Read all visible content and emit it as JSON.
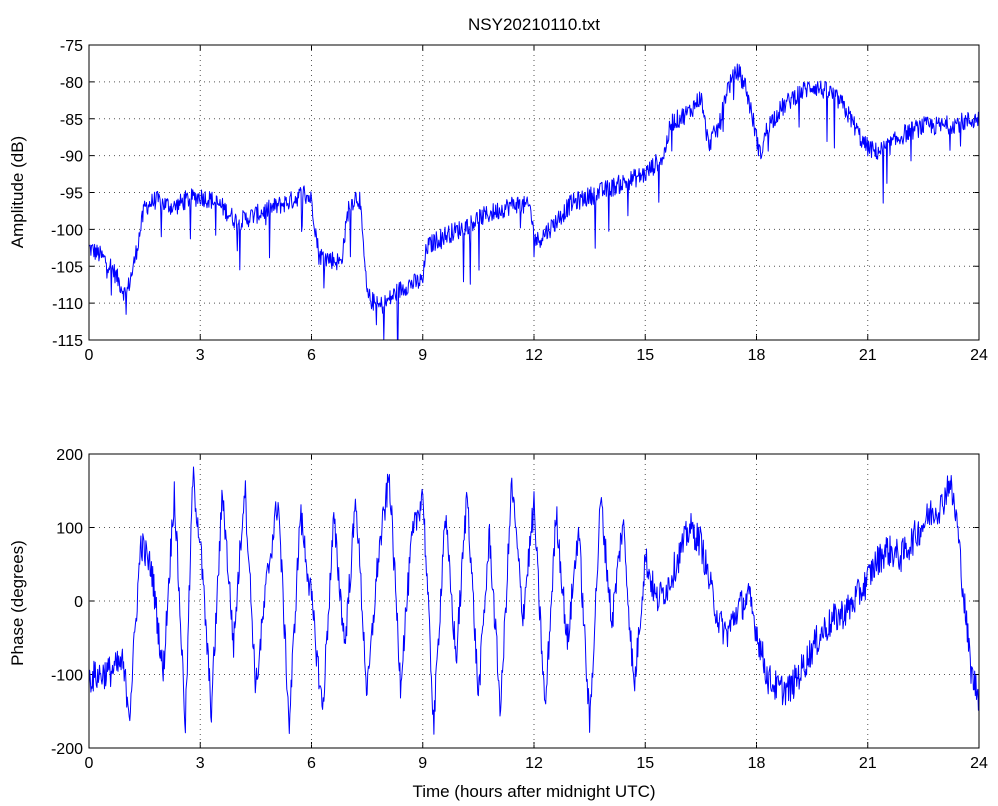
{
  "title": "NSY20210110.txt",
  "colors": {
    "series": "#0000ff",
    "axes": "#000000",
    "background": "#ffffff"
  },
  "chart_data": [
    {
      "type": "line",
      "title": "NSY20210110.txt",
      "xlabel": "",
      "ylabel": "Amplitude (dB)",
      "xlim": [
        0,
        24
      ],
      "ylim": [
        -115,
        -75
      ],
      "xticks": [
        0,
        3,
        6,
        9,
        12,
        15,
        18,
        21,
        24
      ],
      "yticks": [
        -75,
        -80,
        -85,
        -90,
        -95,
        -100,
        -105,
        -110,
        -115
      ],
      "grid": true,
      "legend": "none",
      "series": [
        {
          "x": [
            0,
            0.3,
            0.6,
            0.8,
            1.0,
            1.2,
            1.5,
            1.8,
            2.0,
            2.3,
            2.6,
            3.0,
            3.3,
            3.6,
            4.0,
            4.5,
            5.0,
            5.5,
            5.8,
            6.0,
            6.2,
            6.5,
            6.8,
            7.0,
            7.2,
            7.3,
            7.5,
            7.8,
            8.0,
            8.3,
            8.6,
            9.0,
            9.1,
            9.5,
            10.0,
            10.5,
            11.0,
            11.5,
            11.9,
            12.0,
            12.1,
            12.5,
            13.0,
            13.5,
            14.0,
            14.5,
            15.0,
            15.5,
            15.7,
            15.9,
            16.2,
            16.5,
            16.7,
            17.0,
            17.2,
            17.5,
            17.7,
            17.9,
            18.1,
            18.3,
            18.6,
            19.0,
            19.5,
            20.0,
            20.3,
            20.6,
            20.9,
            21.2,
            21.5,
            22.0,
            22.5,
            23.0,
            23.5,
            24.0
          ],
          "values": [
            -102.5,
            -103.5,
            -105,
            -107,
            -109,
            -105,
            -97,
            -96,
            -96.5,
            -97,
            -96,
            -95.5,
            -96,
            -97,
            -99,
            -98,
            -97,
            -96,
            -95,
            -96,
            -103.5,
            -104,
            -104.5,
            -97,
            -95.5,
            -96,
            -109,
            -110.5,
            -110,
            -108.5,
            -107.5,
            -107,
            -102.5,
            -101,
            -100,
            -98.5,
            -97.5,
            -96.5,
            -97,
            -101,
            -101.5,
            -99.5,
            -96.5,
            -95.5,
            -94.5,
            -93.5,
            -92.5,
            -90,
            -85.5,
            -85,
            -84,
            -82,
            -88.5,
            -86,
            -81,
            -78.5,
            -80.5,
            -85,
            -90,
            -86,
            -84,
            -82,
            -80.5,
            -81.5,
            -83,
            -85.5,
            -88.5,
            -89.5,
            -89,
            -87,
            -86,
            -86,
            -85.5,
            -85
          ]
        }
      ]
    },
    {
      "type": "line",
      "title": "",
      "xlabel": "Time (hours after midnight UTC)",
      "ylabel": "Phase (degrees)",
      "xlim": [
        0,
        24
      ],
      "ylim": [
        -200,
        200
      ],
      "xticks": [
        0,
        3,
        6,
        9,
        12,
        15,
        18,
        21,
        24
      ],
      "yticks": [
        200,
        100,
        0,
        -100,
        -200
      ],
      "grid": true,
      "legend": "none",
      "series": [
        {
          "x": [
            0,
            0.3,
            0.6,
            0.9,
            1.1,
            1.4,
            1.7,
            2.0,
            2.3,
            2.6,
            2.8,
            3.0,
            3.3,
            3.6,
            3.9,
            4.2,
            4.5,
            4.8,
            5.1,
            5.4,
            5.7,
            6.0,
            6.3,
            6.6,
            6.9,
            7.2,
            7.5,
            7.8,
            8.1,
            8.4,
            8.7,
            9.0,
            9.3,
            9.6,
            9.9,
            10.2,
            10.5,
            10.8,
            11.1,
            11.4,
            11.7,
            12.0,
            12.3,
            12.6,
            12.9,
            13.2,
            13.5,
            13.8,
            14.1,
            14.4,
            14.7,
            15.0,
            15.3,
            15.6,
            15.9,
            16.2,
            16.5,
            16.8,
            17.0,
            17.2,
            17.5,
            17.8,
            18.0,
            18.3,
            18.6,
            18.9,
            19.2,
            19.5,
            19.8,
            20.1,
            20.5,
            20.9,
            21.2,
            21.5,
            21.9,
            22.3,
            22.7,
            23.0,
            23.2,
            23.4,
            23.6,
            23.8,
            24.0
          ],
          "values": [
            -105,
            -100,
            -95,
            -85,
            -150,
            80,
            40,
            -100,
            150,
            -170,
            170,
            80,
            -150,
            150,
            -60,
            160,
            -120,
            30,
            140,
            -170,
            120,
            0,
            -150,
            110,
            -60,
            140,
            -130,
            60,
            170,
            -110,
            80,
            150,
            -170,
            120,
            -80,
            150,
            -130,
            90,
            -150,
            160,
            -20,
            130,
            -150,
            120,
            -60,
            100,
            -170,
            140,
            -30,
            110,
            -120,
            60,
            0,
            20,
            60,
            100,
            80,
            10,
            -30,
            -45,
            -10,
            5,
            -40,
            -105,
            -120,
            -120,
            -95,
            -65,
            -40,
            -25,
            -10,
            20,
            50,
            70,
            60,
            90,
            120,
            130,
            165,
            110,
            0,
            -100,
            -130
          ]
        }
      ]
    }
  ]
}
